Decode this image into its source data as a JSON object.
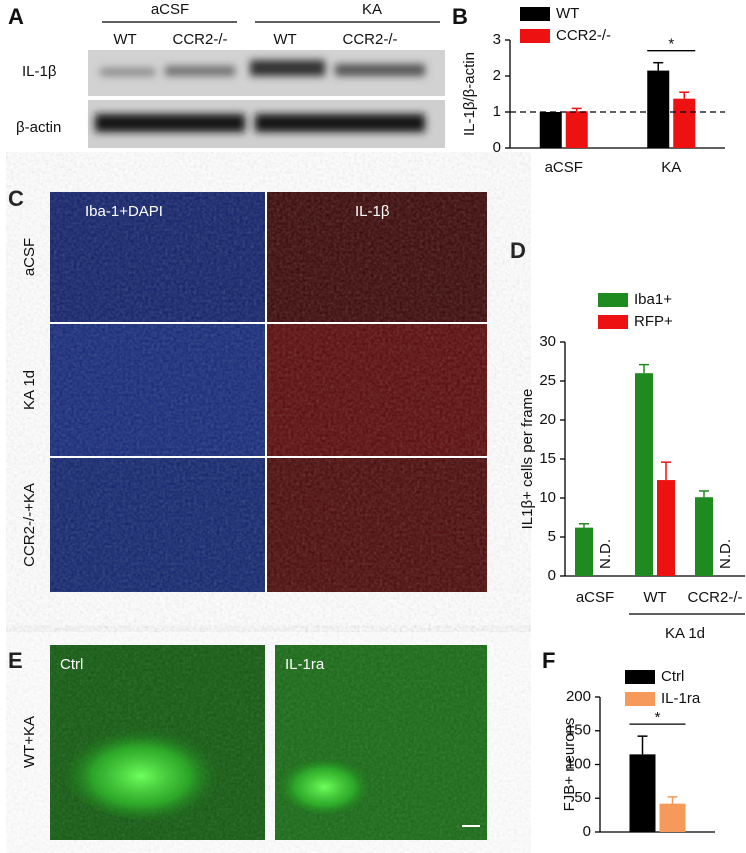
{
  "labels": {
    "panels": [
      "A",
      "B",
      "C",
      "D",
      "E",
      "F"
    ],
    "blot": {
      "groups": [
        "aCSF",
        "KA"
      ],
      "lanes": [
        "WT",
        "CCR2-/-",
        "WT",
        "CCR2-/-"
      ],
      "rows": [
        "IL-1β",
        "β-actin"
      ]
    },
    "staining": {
      "columns": [
        "Iba-1+DAPI",
        "IL-1β"
      ],
      "rows": [
        "aCSF",
        "KA 1d",
        "CCR2-/-+KA"
      ]
    },
    "fjb": {
      "row": "WT+KA",
      "images": [
        "Ctrl",
        "IL-1ra"
      ]
    }
  },
  "chart_data": [
    {
      "type": "bar",
      "ylabel": "IL-1β/β-actin",
      "categories": [
        "aCSF",
        "KA"
      ],
      "series": [
        {
          "name": "WT",
          "color": "#000000",
          "values": [
            1,
            2.15
          ],
          "errors": [
            0,
            0.22
          ]
        },
        {
          "name": "CCR2-/-",
          "color": "#ee1111",
          "values": [
            1.02,
            1.37
          ],
          "errors": [
            0.08,
            0.18
          ]
        }
      ],
      "ylim": [
        0,
        3
      ],
      "yticks": [
        0,
        1,
        2,
        3
      ],
      "reference_line": 1,
      "significance": "*"
    },
    {
      "type": "bar",
      "ylabel": "IL1β+ cells per frame",
      "categories": [
        "aCSF",
        "WT",
        "CCR2-/-"
      ],
      "group_label": "KA 1d",
      "series": [
        {
          "name": "Iba1+",
          "color": "#1f8a1f",
          "values": [
            6.2,
            26,
            10.1
          ],
          "errors": [
            0.5,
            1.1,
            0.8
          ]
        },
        {
          "name": "RFP+",
          "color": "#ee1111",
          "values": [
            null,
            12.3,
            null
          ],
          "errors": [
            null,
            2.3,
            null
          ],
          "value_labels": [
            "N.D.",
            null,
            "N.D."
          ]
        }
      ],
      "ylim": [
        0,
        30
      ],
      "yticks": [
        0,
        5,
        10,
        15,
        20,
        25,
        30
      ]
    },
    {
      "type": "bar",
      "ylabel": "FJB+ neurons",
      "categories": [
        null
      ],
      "series": [
        {
          "name": "Ctrl",
          "color": "#000000",
          "values": [
            115
          ],
          "errors": [
            27
          ]
        },
        {
          "name": "IL-1ra",
          "color": "#f59a5a",
          "values": [
            42
          ],
          "errors": [
            10
          ]
        }
      ],
      "ylim": [
        0,
        200
      ],
      "yticks": [
        0,
        50,
        100,
        150,
        200
      ],
      "significance": "*"
    }
  ]
}
